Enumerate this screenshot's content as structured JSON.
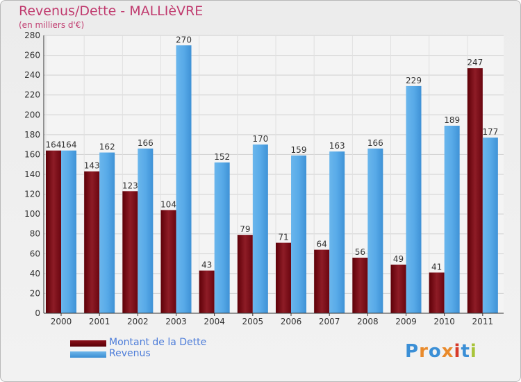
{
  "title": "Revenus/Dette - MALLIèVRE",
  "subtitle": "(en milliers d'€)",
  "logo_text": "Proxiti",
  "colors": {
    "dette": "#7a0a12",
    "revenus": "#4fa4e4",
    "title": "#c03a6e",
    "legend_text": "#4c7cd9"
  },
  "chart_data": {
    "type": "bar",
    "title": "Revenus/Dette - MALLIèVRE",
    "ylabel": "(en milliers d'€)",
    "xlabel": "",
    "ylim": [
      0,
      280
    ],
    "ytick_step": 20,
    "grid": true,
    "legend_position": "bottom-left",
    "categories": [
      "2000",
      "2001",
      "2002",
      "2003",
      "2004",
      "2005",
      "2006",
      "2007",
      "2008",
      "2009",
      "2010",
      "2011"
    ],
    "series": [
      {
        "name": "Montant de la Dette",
        "values": [
          164,
          143,
          123,
          104,
          43,
          79,
          71,
          64,
          56,
          49,
          41,
          247
        ]
      },
      {
        "name": "Revenus",
        "values": [
          164,
          162,
          166,
          270,
          152,
          170,
          159,
          163,
          166,
          229,
          189,
          177
        ]
      }
    ]
  }
}
